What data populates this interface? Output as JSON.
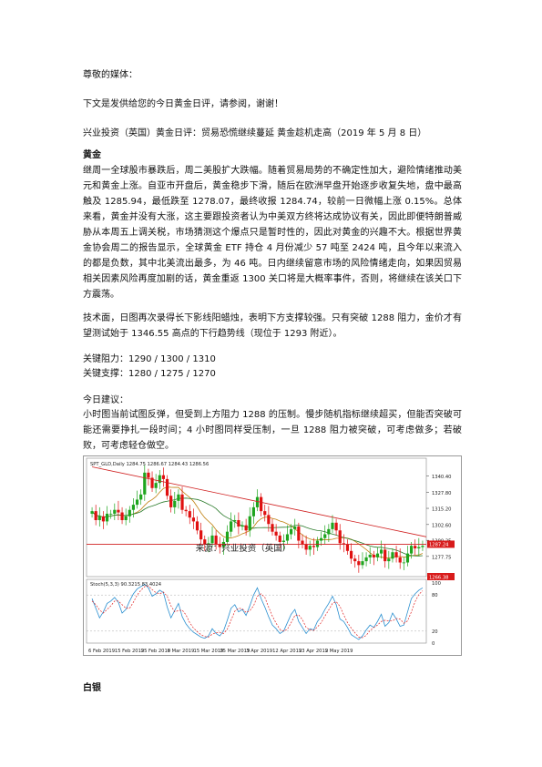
{
  "greeting": "尊敬的媒体：",
  "intro": "下文是发供给您的今日黄金日评，请参阅，谢谢！",
  "report_title": "兴业投资（英国）黄金日评：贸易恐慌继续蔓延  黄金趁机走高（2019 年 5 月 8 日）",
  "gold": {
    "heading": "黄金",
    "para1": "继周一全球股市暴跌后，周二美股扩大跌幅。随着贸易局势的不确定性加大，避险情绪推动美元和黄金上涨。自亚市开盘后，黄金稳步下滑，随后在欧洲早盘开始逐步收复失地，盘中最高触及 1285.94，最低跌至 1278.07，最终收报 1284.74，较前一日微幅上涨 0.15%。总体来看，黄金并没有大涨，这主要跟投资者认为中美双方终将达成协议有关，因此即便特朗普威胁从本周五上调关税，市场猜测这个爆点只是暂时性的，因此对黄金的兴趣不大。根据世界黄金协会周二的报告显示，全球黄金 ETF 持仓 4 月份减少 57 吨至 2424 吨，且今年以来流入的都是负数，其中北美流出最多，为 46 吨。日内继续留意市场的风险情绪走向，如果因贸易相关因素风险再度加剧的话，黄金重返 1300 关口将是大概率事件，否则，将继续在该关口下方震荡。",
    "para2": "技术面，日图再次录得长下影线阳蜡烛，表明下方支撑较强。只有突破 1288 阻力，金价才有望测试始于 1346.55 高点的下行趋势线（现位于 1293 附近）。",
    "resistance": "关键阻力：1290 / 1300 / 1310",
    "support": "关键支撑：1280 / 1275 / 1270",
    "advice_label": "今日建议：",
    "advice": "小时图当前试图反弹，但受到上方阻力 1288 的压制。慢步随机指标继续超买，但能否突破可能还需要挣扎一段时间；4 小时图同样受压制，一旦 1288 阻力被突破，可考虑做多；若破败，可考虑轻仓做空。"
  },
  "silver_heading": "白银",
  "chart_data": {
    "type": "candlestick",
    "symbol_label": "SPT_GLD,Daily  1284.75 1286.67 1284.43 1286.56",
    "watermark": "来源：兴业投资（英国）",
    "ylim": [
      1262,
      1350
    ],
    "yticks": [
      1340.4,
      1327.8,
      1315.2,
      1302.6,
      1290.25,
      1277.75
    ],
    "price_tags": {
      "current": "1287.24",
      "low": "1266.38"
    },
    "hline": 1287.24,
    "trendline": [
      [
        0,
        1347.5
      ],
      [
        62,
        1293
      ]
    ],
    "xlabels": [
      {
        "i": 0,
        "label": "6 Feb 2019"
      },
      {
        "i": 7,
        "label": "15 Feb 2019"
      },
      {
        "i": 14,
        "label": "25 Feb 2019"
      },
      {
        "i": 21,
        "label": "6 Mar 2019"
      },
      {
        "i": 28,
        "label": "15 Mar 2019"
      },
      {
        "i": 35,
        "label": "25 Mar 2019"
      },
      {
        "i": 42,
        "label": "3 Apr 2019"
      },
      {
        "i": 49,
        "label": "12 Apr 2019"
      },
      {
        "i": 56,
        "label": "23 Apr 2019"
      },
      {
        "i": 63,
        "label": "2 May 2019"
      }
    ],
    "closes": [
      1313,
      1306,
      1309,
      1305,
      1311,
      1311,
      1314,
      1312,
      1306,
      1309,
      1314,
      1318,
      1322,
      1326,
      1343,
      1339,
      1331,
      1335,
      1341,
      1338,
      1325,
      1316,
      1321,
      1326,
      1314,
      1313,
      1308,
      1305,
      1298,
      1291,
      1287,
      1288,
      1294,
      1287,
      1285,
      1289,
      1297,
      1305,
      1306,
      1301,
      1302,
      1298,
      1309,
      1316,
      1324,
      1313,
      1310,
      1303,
      1297,
      1294,
      1289,
      1290,
      1295,
      1299,
      1301,
      1290,
      1287,
      1283,
      1286,
      1285,
      1290,
      1292,
      1295,
      1299,
      1304,
      1298,
      1288,
      1287,
      1282,
      1276,
      1274,
      1271,
      1274,
      1277,
      1279,
      1277,
      1280,
      1283,
      1274,
      1276,
      1281,
      1277,
      1273,
      1273,
      1280,
      1286,
      1284,
      1285,
      1286
    ],
    "indicator": {
      "label": "Stoch(5,3,3) 90.3215 83.4024",
      "ylim": [
        0,
        100
      ],
      "yticks": [
        100,
        80,
        20,
        0
      ],
      "main": [
        74,
        58,
        42,
        52,
        66,
        70,
        76,
        68,
        50,
        56,
        70,
        82,
        90,
        94,
        98,
        92,
        78,
        82,
        88,
        84,
        60,
        42,
        54,
        66,
        44,
        32,
        24,
        18,
        14,
        10,
        8,
        12,
        24,
        16,
        12,
        20,
        38,
        58,
        64,
        52,
        56,
        46,
        62,
        80,
        92,
        74,
        60,
        44,
        30,
        24,
        16,
        20,
        34,
        48,
        56,
        36,
        26,
        16,
        24,
        22,
        36,
        44,
        56,
        66,
        78,
        64,
        40,
        36,
        26,
        14,
        10,
        6,
        12,
        22,
        30,
        26,
        36,
        48,
        28,
        34,
        50,
        40,
        28,
        30,
        52,
        74,
        82,
        88,
        92
      ],
      "signal": [
        70,
        64,
        55,
        50,
        56,
        62,
        70,
        70,
        64,
        58,
        58,
        68,
        80,
        88,
        94,
        95,
        89,
        84,
        82,
        85,
        78,
        62,
        52,
        54,
        55,
        47,
        34,
        25,
        19,
        14,
        11,
        10,
        15,
        17,
        18,
        16,
        23,
        38,
        53,
        58,
        57,
        51,
        54,
        62,
        78,
        82,
        76,
        60,
        45,
        33,
        23,
        20,
        23,
        34,
        46,
        47,
        39,
        26,
        22,
        21,
        27,
        34,
        45,
        55,
        66,
        69,
        61,
        47,
        34,
        25,
        17,
        10,
        9,
        13,
        21,
        26,
        30,
        36,
        38,
        37,
        37,
        41,
        40,
        33,
        37,
        52,
        69,
        81,
        87
      ]
    }
  }
}
